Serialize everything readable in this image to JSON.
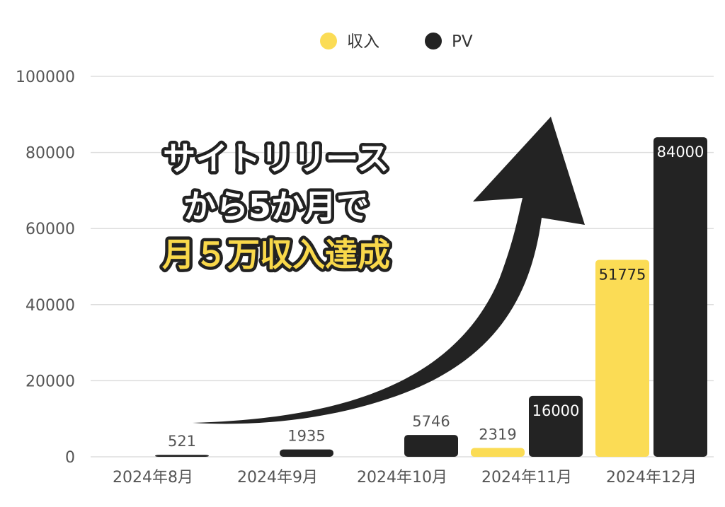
{
  "chart_data": {
    "type": "bar",
    "categories": [
      "2024年8月",
      "2024年9月",
      "2024年10月",
      "2024年11月",
      "2024年12月"
    ],
    "series": [
      {
        "name": "収入",
        "color": "#FBDC55",
        "values": [
          0,
          0,
          0,
          2319,
          51775
        ]
      },
      {
        "name": "PV",
        "color": "#232323",
        "values": [
          521,
          1935,
          5746,
          16000,
          84000
        ]
      }
    ],
    "data_labels": {
      "収入": [
        "",
        "",
        "",
        "2319",
        "51775"
      ],
      "PV": [
        "521",
        "1935",
        "5746",
        "16000",
        "84000"
      ]
    },
    "ylim": [
      0,
      100000
    ],
    "yticks": [
      "0",
      "20000",
      "40000",
      "60000",
      "80000",
      "100000"
    ],
    "ytick_values": [
      0,
      20000,
      40000,
      60000,
      80000,
      100000
    ],
    "grid": true,
    "legend_position": "top-center",
    "xlabel": "",
    "ylabel": ""
  },
  "annotation": {
    "line1": "サイトリリース",
    "line2": "から5か月で",
    "line3": "月５万収入達成",
    "arrow_color": "#232323",
    "accent_color": "#F9D84A"
  }
}
